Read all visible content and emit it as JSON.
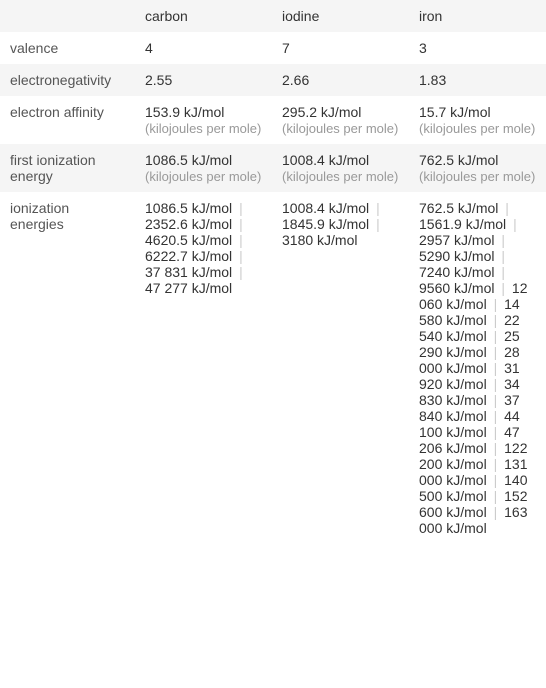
{
  "headers": {
    "col1": "carbon",
    "col2": "iodine",
    "col3": "iron"
  },
  "rows": {
    "valence": {
      "label": "valence",
      "carbon": "4",
      "iodine": "7",
      "iron": "3"
    },
    "electronegativity": {
      "label": "electronegativity",
      "carbon": "2.55",
      "iodine": "2.66",
      "iron": "1.83"
    },
    "electron_affinity": {
      "label": "electron affinity",
      "carbon_val": "153.9 kJ/mol",
      "carbon_unit": "(kilojoules per mole)",
      "iodine_val": "295.2 kJ/mol",
      "iodine_unit": "(kilojoules per mole)",
      "iron_val": "15.7 kJ/mol",
      "iron_unit": "(kilojoules per mole)"
    },
    "first_ionization": {
      "label": "first ionization energy",
      "carbon_val": "1086.5 kJ/mol",
      "carbon_unit": "(kilojoules per mole)",
      "iodine_val": "1008.4 kJ/mol",
      "iodine_unit": "(kilojoules per mole)",
      "iron_val": "762.5 kJ/mol",
      "iron_unit": "(kilojoules per mole)"
    },
    "ionization_energies": {
      "label": "ionization energies",
      "carbon": [
        "1086.5 kJ/mol",
        "2352.6 kJ/mol",
        "4620.5 kJ/mol",
        "6222.7 kJ/mol",
        "37 831 kJ/mol",
        "47 277 kJ/mol"
      ],
      "iodine": [
        "1008.4 kJ/mol",
        "1845.9 kJ/mol",
        "3180 kJ/mol"
      ],
      "iron": [
        "762.5 kJ/mol",
        "1561.9 kJ/mol",
        "2957 kJ/mol",
        "5290 kJ/mol",
        "7240 kJ/mol",
        "9560 kJ/mol",
        "12 060 kJ/mol",
        "14 580 kJ/mol",
        "22 540 kJ/mol",
        "25 290 kJ/mol",
        "28 000 kJ/mol",
        "31 920 kJ/mol",
        "34 830 kJ/mol",
        "37 840 kJ/mol",
        "44 100 kJ/mol",
        "47 206 kJ/mol",
        "122 200 kJ/mol",
        "131 000 kJ/mol",
        "140 500 kJ/mol",
        "152 600 kJ/mol",
        "163 000 kJ/mol"
      ]
    }
  },
  "separator": "|",
  "colors": {
    "odd_row_bg": "#f5f5f5",
    "even_row_bg": "#ffffff",
    "text": "#333333",
    "label_text": "#555555",
    "unit_text": "#999999",
    "separator": "#cccccc"
  }
}
